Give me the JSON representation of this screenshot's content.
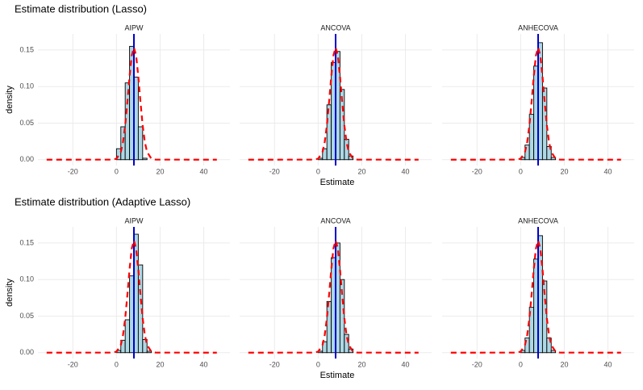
{
  "chart_data": [
    {
      "type": "histogram",
      "title": "Estimate distribution (Lasso)",
      "xlabel": "Estimate",
      "ylabel": "density",
      "xlim": [
        -36,
        52
      ],
      "xticks": [
        -20,
        0,
        20,
        40
      ],
      "ylim": [
        -0.008,
        0.172
      ],
      "yticks": [
        {
          "value": 0,
          "label": "0.00"
        },
        {
          "value": 0.05,
          "label": "0.05"
        },
        {
          "value": 0.1,
          "label": "0.10"
        },
        {
          "value": 0.15,
          "label": "0.15"
        }
      ],
      "grid": true,
      "bar_color": "#add8e6",
      "curve_color": "#ff0000",
      "vline_color": "#0000cd",
      "panels": [
        {
          "title": "AIPW",
          "bins": [
            0,
            2,
            4,
            6,
            8,
            10,
            12,
            14,
            16
          ],
          "values": [
            0.015,
            0.045,
            0.105,
            0.155,
            0.113,
            0.045,
            0.002,
            0
          ],
          "curve_x": [
            -32,
            -2,
            0,
            2,
            3,
            4,
            5,
            6,
            7,
            8,
            9,
            10,
            11,
            12,
            13,
            14,
            16,
            18,
            46
          ],
          "curve_values": [
            0,
            0.0001,
            0.0013,
            0.0107,
            0.0241,
            0.047,
            0.0789,
            0.1141,
            0.1425,
            0.1534,
            0.1425,
            0.1141,
            0.0789,
            0.047,
            0.0241,
            0.0107,
            0.0013,
            0.0001,
            0
          ],
          "vline": 8
        },
        {
          "title": "ANCOVA",
          "bins": [
            0,
            2,
            4,
            6,
            8,
            10,
            12,
            14,
            16
          ],
          "values": [
            0.002,
            0.015,
            0.075,
            0.133,
            0.148,
            0.096,
            0.028,
            0.005
          ],
          "curve_x": [
            -32,
            -2,
            0,
            2,
            3,
            4,
            5,
            6,
            7,
            8,
            9,
            10,
            11,
            12,
            13,
            14,
            16,
            18,
            46
          ],
          "curve_values": [
            0,
            0.0001,
            0.0013,
            0.0107,
            0.0241,
            0.047,
            0.0789,
            0.1141,
            0.1425,
            0.1534,
            0.1425,
            0.1141,
            0.0789,
            0.047,
            0.0241,
            0.0107,
            0.0013,
            0.0001,
            0
          ],
          "vline": 8
        },
        {
          "title": "ANHECOVA",
          "bins": [
            0,
            2,
            4,
            6,
            8,
            10,
            12,
            14,
            16
          ],
          "values": [
            0.003,
            0.02,
            0.062,
            0.128,
            0.16,
            0.098,
            0.018,
            0.003
          ],
          "curve_x": [
            -32,
            -2,
            0,
            2,
            3,
            4,
            5,
            6,
            7,
            8,
            9,
            10,
            11,
            12,
            13,
            14,
            16,
            18,
            46
          ],
          "curve_values": [
            0,
            0.0001,
            0.0013,
            0.0107,
            0.0241,
            0.047,
            0.0789,
            0.1141,
            0.1425,
            0.1534,
            0.1425,
            0.1141,
            0.0789,
            0.047,
            0.0241,
            0.0107,
            0.0013,
            0.0001,
            0
          ],
          "vline": 8
        }
      ]
    },
    {
      "type": "histogram",
      "title": "Estimate distribution (Adaptive Lasso)",
      "xlabel": "Estimate",
      "ylabel": "density",
      "xlim": [
        -36,
        52
      ],
      "xticks": [
        -20,
        0,
        20,
        40
      ],
      "ylim": [
        -0.008,
        0.172
      ],
      "yticks": [
        {
          "value": 0,
          "label": "0.00"
        },
        {
          "value": 0.05,
          "label": "0.05"
        },
        {
          "value": 0.1,
          "label": "0.10"
        },
        {
          "value": 0.15,
          "label": "0.15"
        }
      ],
      "grid": true,
      "bar_color": "#add8e6",
      "curve_color": "#ff0000",
      "vline_color": "#0000cd",
      "panels": [
        {
          "title": "AIPW",
          "bins": [
            0,
            2,
            4,
            6,
            8,
            10,
            12,
            14,
            16
          ],
          "values": [
            0.003,
            0.017,
            0.045,
            0.105,
            0.162,
            0.12,
            0.018,
            0.002
          ],
          "curve_x": [
            -32,
            -2,
            0,
            2,
            3,
            4,
            5,
            6,
            7,
            8,
            9,
            10,
            11,
            12,
            13,
            14,
            16,
            18,
            46
          ],
          "curve_values": [
            0,
            0.0001,
            0.0013,
            0.0107,
            0.0241,
            0.047,
            0.0789,
            0.1141,
            0.1425,
            0.1534,
            0.1425,
            0.1141,
            0.0789,
            0.047,
            0.0241,
            0.0107,
            0.0013,
            0.0001,
            0
          ],
          "vline": 8
        },
        {
          "title": "ANCOVA",
          "bins": [
            0,
            2,
            4,
            6,
            8,
            10,
            12,
            14,
            16
          ],
          "values": [
            0.002,
            0.015,
            0.07,
            0.13,
            0.15,
            0.1,
            0.025,
            0.005
          ],
          "curve_x": [
            -32,
            -2,
            0,
            2,
            3,
            4,
            5,
            6,
            7,
            8,
            9,
            10,
            11,
            12,
            13,
            14,
            16,
            18,
            46
          ],
          "curve_values": [
            0,
            0.0001,
            0.0013,
            0.0107,
            0.0241,
            0.047,
            0.0789,
            0.1141,
            0.1425,
            0.1534,
            0.1425,
            0.1141,
            0.0789,
            0.047,
            0.0241,
            0.0107,
            0.0013,
            0.0001,
            0
          ],
          "vline": 8
        },
        {
          "title": "ANHECOVA",
          "bins": [
            0,
            2,
            4,
            6,
            8,
            10,
            12,
            14,
            16
          ],
          "values": [
            0.003,
            0.02,
            0.062,
            0.128,
            0.16,
            0.098,
            0.02,
            0.003
          ],
          "curve_x": [
            -32,
            -2,
            0,
            2,
            3,
            4,
            5,
            6,
            7,
            8,
            9,
            10,
            11,
            12,
            13,
            14,
            16,
            18,
            46
          ],
          "curve_values": [
            0,
            0.0001,
            0.0013,
            0.0107,
            0.0241,
            0.047,
            0.0789,
            0.1141,
            0.1425,
            0.1534,
            0.1425,
            0.1141,
            0.0789,
            0.047,
            0.0241,
            0.0107,
            0.0013,
            0.0001,
            0
          ],
          "vline": 8
        }
      ]
    }
  ]
}
